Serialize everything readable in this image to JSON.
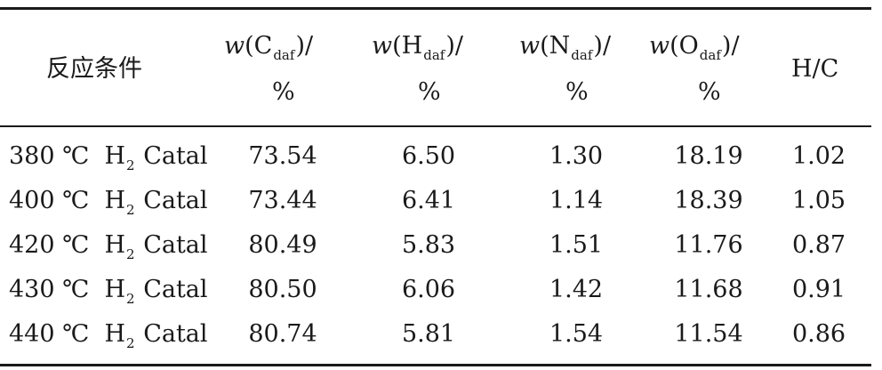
{
  "header": {
    "condition": "反应条件",
    "w_prefix": "w",
    "c_open": "(C",
    "h_open": "(H",
    "n_open": "(N",
    "o_open": "(O",
    "sub_daf": "daf",
    "close_slash": ")/",
    "percent": "%",
    "hc": "H/C"
  },
  "rows": [
    {
      "temp": "380 ℃",
      "h": "H",
      "h_sub": "2",
      "cat": "Catal",
      "c": "73.54",
      "hh": "6.50",
      "n": "1.30",
      "o": "18.19",
      "hc": "1.02"
    },
    {
      "temp": "400 ℃",
      "h": "H",
      "h_sub": "2",
      "cat": "Catal",
      "c": "73.44",
      "hh": "6.41",
      "n": "1.14",
      "o": "18.39",
      "hc": "1.05"
    },
    {
      "temp": "420 ℃",
      "h": "H",
      "h_sub": "2",
      "cat": "Catal",
      "c": "80.49",
      "hh": "5.83",
      "n": "1.51",
      "o": "11.76",
      "hc": "0.87"
    },
    {
      "temp": "430 ℃",
      "h": "H",
      "h_sub": "2",
      "cat": "Catal",
      "c": "80.50",
      "hh": "6.06",
      "n": "1.42",
      "o": "11.68",
      "hc": "0.91"
    },
    {
      "temp": "440 ℃",
      "h": "H",
      "h_sub": "2",
      "cat": "Catal",
      "c": "80.74",
      "hh": "5.81",
      "n": "1.54",
      "o": "11.54",
      "hc": "0.86"
    }
  ]
}
